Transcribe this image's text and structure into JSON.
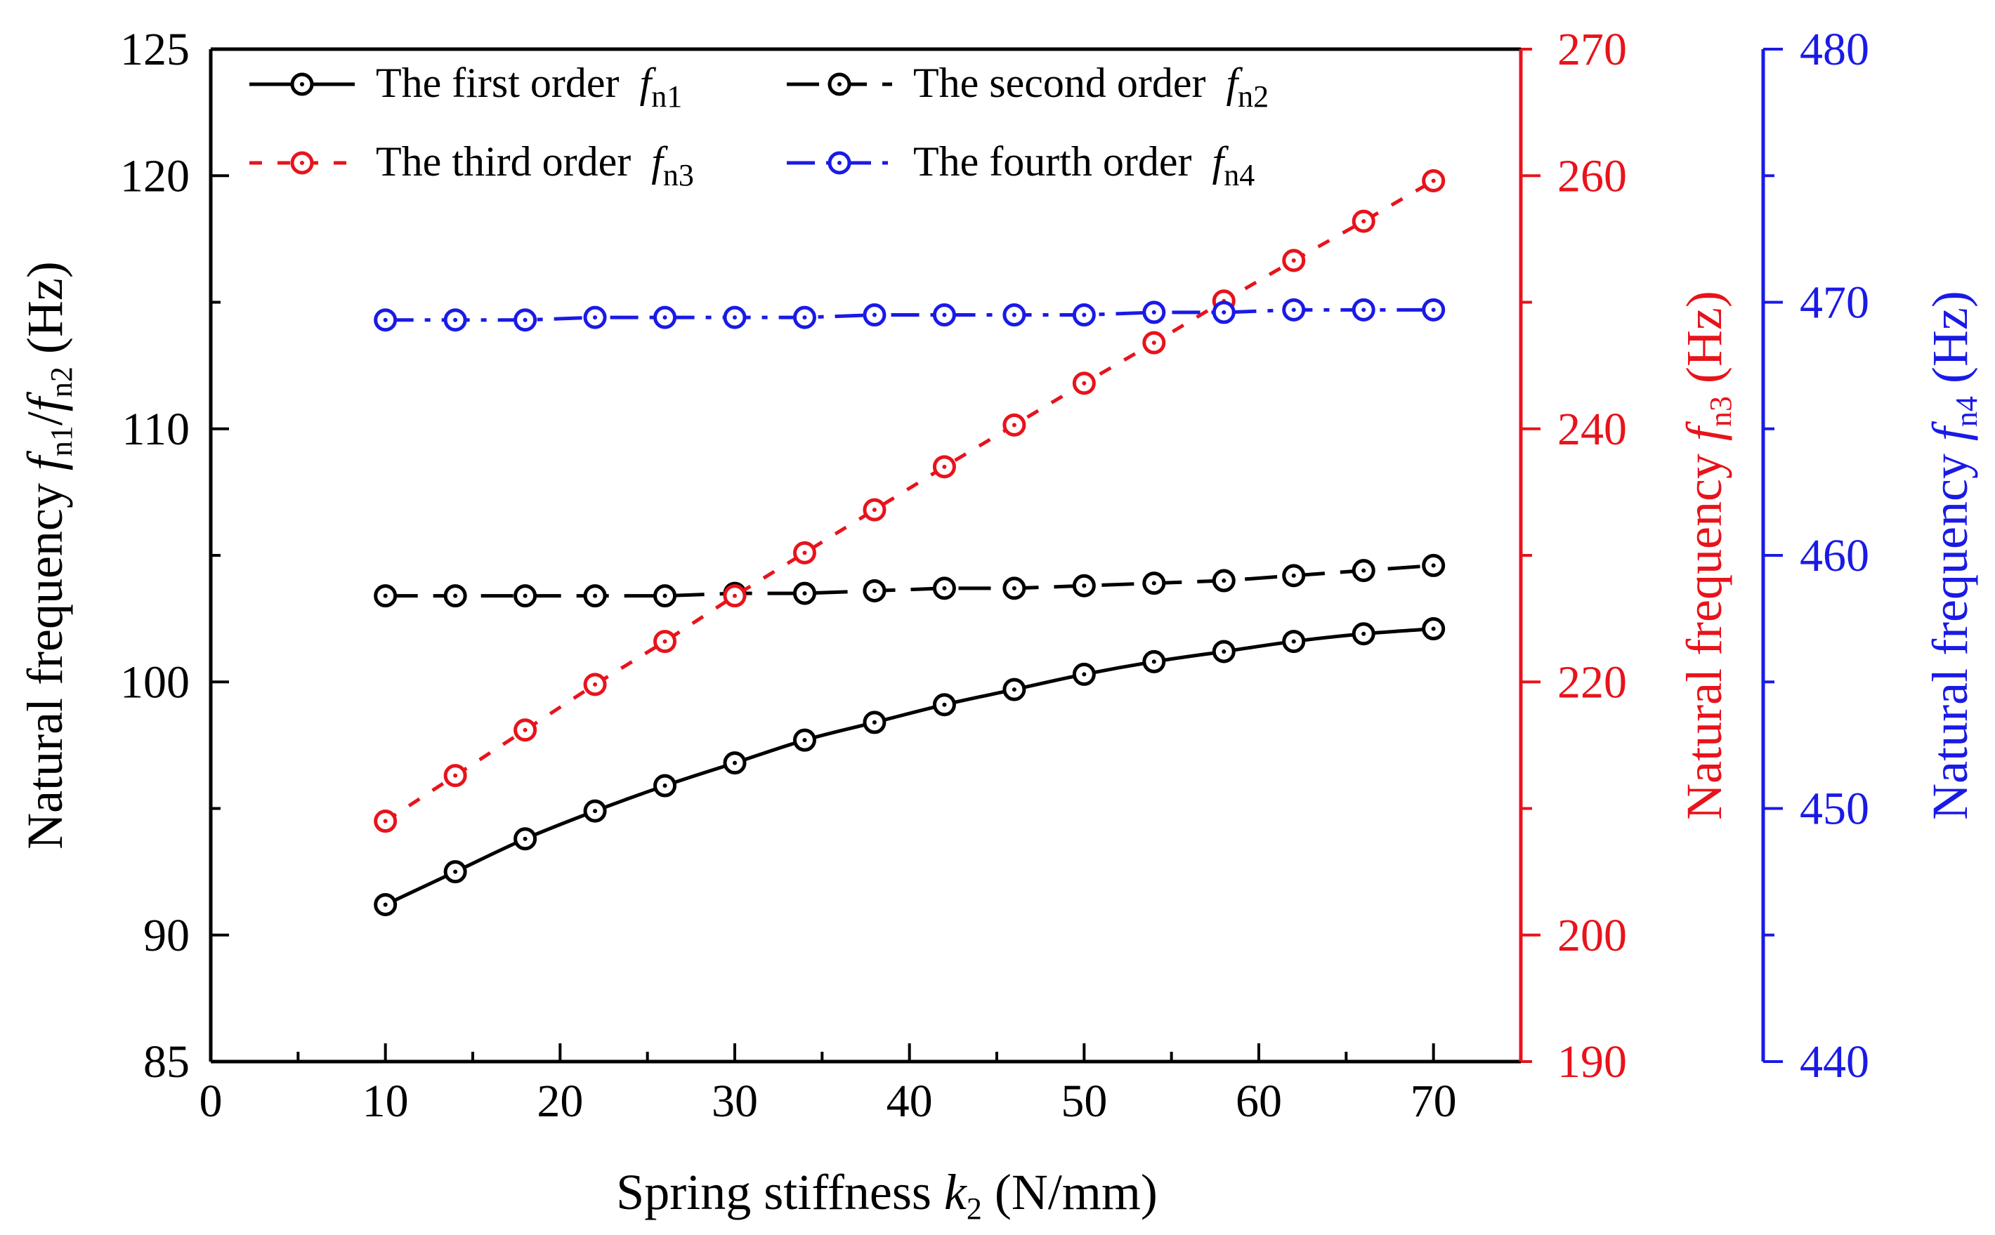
{
  "chart_data": {
    "type": "line",
    "xlabel": "Spring stiffness k2 (N/mm)",
    "x_axis": {
      "label": {
        "pre": "Spring stiffness ",
        "var": "k",
        "sub": "2",
        "post": " (N/mm)"
      },
      "range": [
        0,
        75
      ],
      "ticks": [
        0,
        10,
        20,
        30,
        40,
        50,
        60,
        70
      ]
    },
    "y_axis_left": {
      "label": {
        "pre": "Natural frequency ",
        "var1": "f",
        "sub1": "n1",
        "sep": "/",
        "var2": "f",
        "sub2": "n2",
        "post": " (Hz)"
      },
      "range": [
        85,
        125
      ],
      "ticks": [
        85,
        90,
        100,
        110,
        120,
        125
      ],
      "color": "#000000"
    },
    "y_axis_right1": {
      "label": {
        "pre": "Natural frequency ",
        "var": "f",
        "sub": "n3",
        "post": " (Hz)"
      },
      "range": [
        190,
        270
      ],
      "ticks": [
        190,
        200,
        220,
        240,
        260,
        270
      ],
      "color": "#e8131b"
    },
    "y_axis_right2": {
      "label": {
        "pre": "Natural frequency ",
        "var": "f",
        "sub": "n4",
        "post": " (Hz)"
      },
      "range": [
        440,
        480
      ],
      "ticks": [
        440,
        450,
        460,
        470,
        480
      ],
      "color": "#1a1ae6"
    },
    "x": [
      10,
      14,
      18,
      22,
      26,
      30,
      34,
      38,
      42,
      46,
      50,
      54,
      58,
      62,
      66,
      70
    ],
    "series": [
      {
        "name": "The first order fn1",
        "legend": {
          "text": "The first order ",
          "var": "f",
          "sub": "n1"
        },
        "axis": "left",
        "color": "#000000",
        "style": "solid",
        "values": [
          91.2,
          92.5,
          93.8,
          94.9,
          95.9,
          96.8,
          97.7,
          98.4,
          99.1,
          99.7,
          100.3,
          100.8,
          101.2,
          101.6,
          101.9,
          102.1
        ]
      },
      {
        "name": "The second order fn2",
        "legend": {
          "text": "The second order ",
          "var": "f",
          "sub": "n2"
        },
        "axis": "left",
        "color": "#000000",
        "style": "dash",
        "values": [
          103.4,
          103.4,
          103.4,
          103.4,
          103.4,
          103.5,
          103.5,
          103.6,
          103.7,
          103.7,
          103.8,
          103.9,
          104.0,
          104.2,
          104.4,
          104.6
        ]
      },
      {
        "name": "The third order fn3",
        "legend": {
          "text": "The third order ",
          "var": "f",
          "sub": "n3"
        },
        "axis": "right1",
        "color": "#e8131b",
        "style": "short-dash",
        "values": [
          209.0,
          212.6,
          216.2,
          219.8,
          223.2,
          226.8,
          230.2,
          233.6,
          237.0,
          240.3,
          243.6,
          246.8,
          250.1,
          253.3,
          256.4,
          259.6
        ]
      },
      {
        "name": "The fourth order fn4",
        "legend": {
          "text": "The fourth order ",
          "var": "f",
          "sub": "n4"
        },
        "axis": "right2",
        "color": "#1a1ae6",
        "style": "dash-dot",
        "values": [
          469.3,
          469.3,
          469.3,
          469.4,
          469.4,
          469.4,
          469.4,
          469.5,
          469.5,
          469.5,
          469.5,
          469.6,
          469.6,
          469.7,
          469.7,
          469.7
        ]
      }
    ]
  }
}
